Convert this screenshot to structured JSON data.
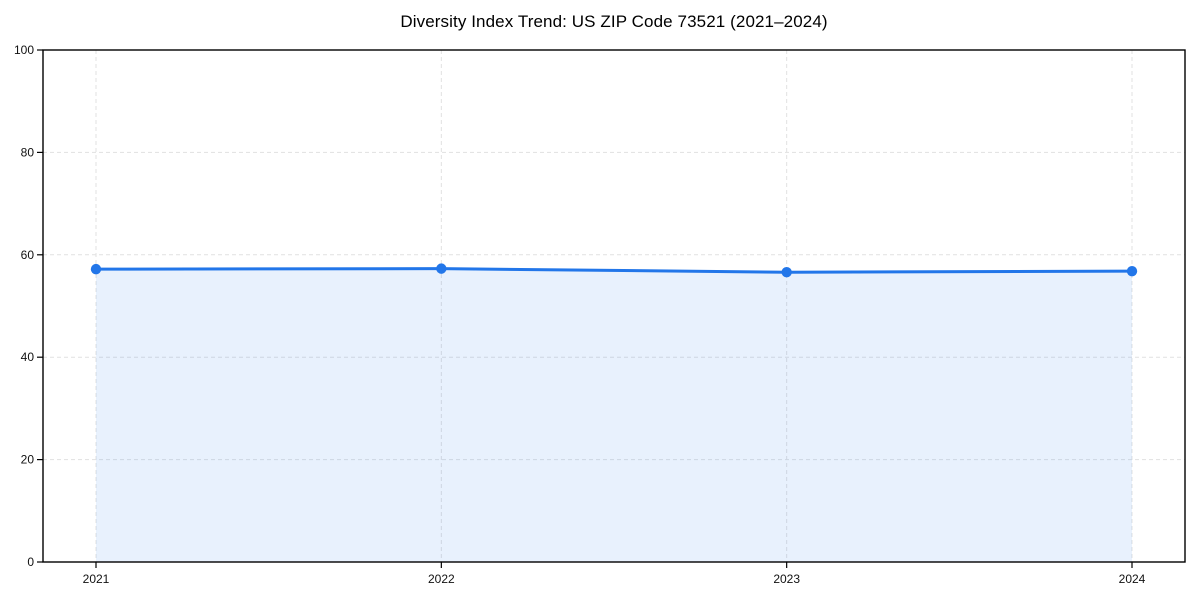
{
  "page": {
    "background": "#ffffff"
  },
  "chart_data": {
    "type": "line",
    "title": "Diversity Index Trend: US ZIP Code 73521 (2021–2024)",
    "x": [
      "2021",
      "2022",
      "2023",
      "2024"
    ],
    "series": [
      {
        "name": "Diversity Index",
        "values": [
          57.2,
          57.3,
          56.6,
          56.8
        ]
      }
    ],
    "xlabel": "",
    "ylabel": "",
    "ylim": [
      0,
      100
    ],
    "yticks": [
      0,
      20,
      40,
      60,
      80,
      100
    ],
    "grid": true,
    "grid_style": "dashed",
    "legend_position": "none",
    "area_fill": true,
    "marker": "circle",
    "line_color": "#2276e9",
    "fill_color": "#e4edfc",
    "grid_color": "#e1e1e1",
    "spine_color": "#000000"
  }
}
